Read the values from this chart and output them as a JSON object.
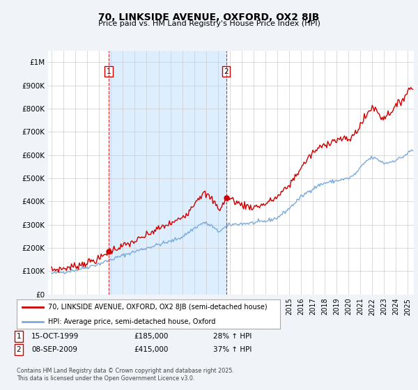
{
  "title": "70, LINKSIDE AVENUE, OXFORD, OX2 8JB",
  "subtitle": "Price paid vs. HM Land Registry's House Price Index (HPI)",
  "y_ticks": [
    0,
    100000,
    200000,
    300000,
    400000,
    500000,
    600000,
    700000,
    800000,
    900000,
    1000000
  ],
  "y_tick_labels": [
    "£0",
    "£100K",
    "£200K",
    "£300K",
    "£400K",
    "£500K",
    "£600K",
    "£700K",
    "£800K",
    "£900K",
    "£1M"
  ],
  "xlim_start": 1994.7,
  "xlim_end": 2025.5,
  "ylim": [
    0,
    1050000
  ],
  "legend_property": "70, LINKSIDE AVENUE, OXFORD, OX2 8JB (semi-detached house)",
  "legend_hpi": "HPI: Average price, semi-detached house, Oxford",
  "property_color": "#cc0000",
  "hpi_color": "#7aaadd",
  "shade_color": "#ddeeff",
  "marker1_date": 1999.79,
  "marker1_value": 185000,
  "marker1_label": "1",
  "marker1_text": "15-OCT-1999",
  "marker1_price": "£185,000",
  "marker1_hpi": "28% ↑ HPI",
  "marker2_date": 2009.69,
  "marker2_value": 415000,
  "marker2_label": "2",
  "marker2_text": "08-SEP-2009",
  "marker2_price": "£415,000",
  "marker2_hpi": "37% ↑ HPI",
  "footer": "Contains HM Land Registry data © Crown copyright and database right 2025.\nThis data is licensed under the Open Government Licence v3.0.",
  "background_color": "#f0f4f8",
  "plot_bg_color": "#ffffff",
  "grid_color": "#cccccc"
}
